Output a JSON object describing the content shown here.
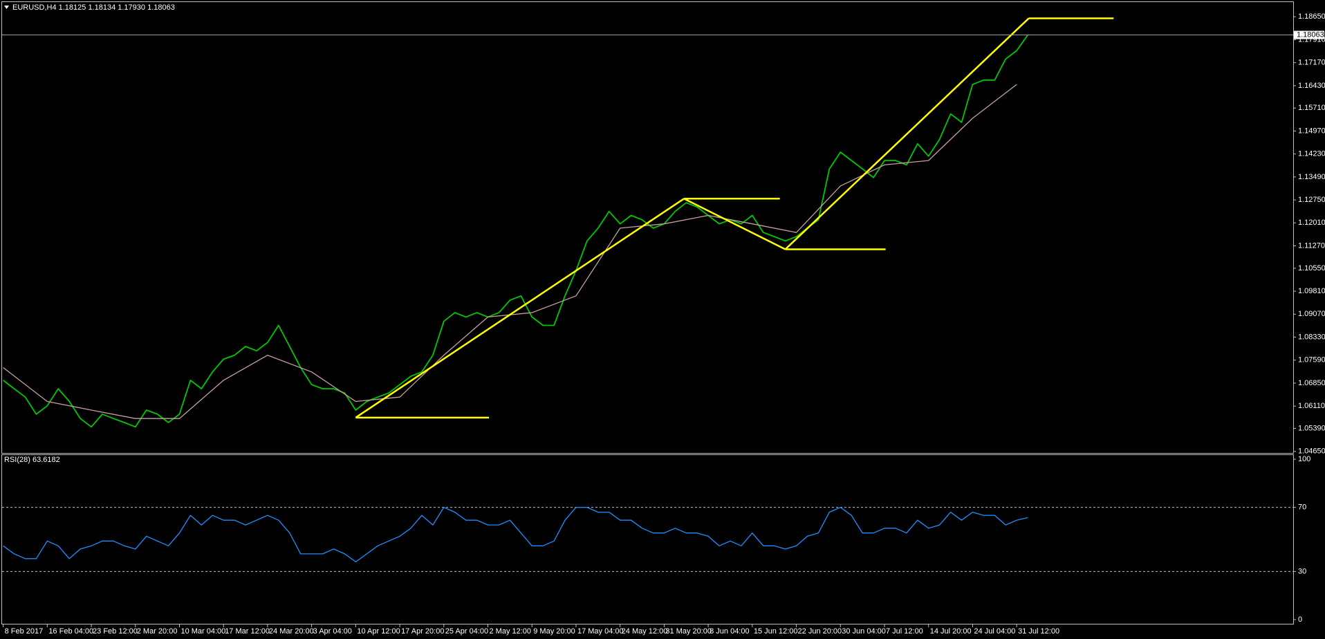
{
  "chart_data": [
    {
      "type": "line",
      "title": "EURUSD,H4  1.18125 1.18134 1.17930 1.18063",
      "xlim": [
        -1,
        1171
      ],
      "ylim": [
        1.046,
        1.191
      ],
      "yticks": [
        {
          "value": 1.1865,
          "label": "1.18650"
        },
        {
          "value": 1.1791,
          "label": "1.17910"
        },
        {
          "value": 1.1717,
          "label": "1.17170"
        },
        {
          "value": 1.1643,
          "label": "1.16430"
        },
        {
          "value": 1.1571,
          "label": "1.15710"
        },
        {
          "value": 1.1497,
          "label": "1.14970"
        },
        {
          "value": 1.1423,
          "label": "1.14230"
        },
        {
          "value": 1.1349,
          "label": "1.13490"
        },
        {
          "value": 1.1275,
          "label": "1.12750"
        },
        {
          "value": 1.1201,
          "label": "1.12010"
        },
        {
          "value": 1.1127,
          "label": "1.11270"
        },
        {
          "value": 1.1055,
          "label": "1.10550"
        },
        {
          "value": 1.0981,
          "label": "1.09810"
        },
        {
          "value": 1.0907,
          "label": "1.09070"
        },
        {
          "value": 1.0833,
          "label": "1.08330"
        },
        {
          "value": 1.0759,
          "label": "1.07590"
        },
        {
          "value": 1.0685,
          "label": "1.06850"
        },
        {
          "value": 1.0611,
          "label": "1.06110"
        },
        {
          "value": 1.0539,
          "label": "1.05390"
        },
        {
          "value": 1.0465,
          "label": "1.04650"
        }
      ],
      "grid": false,
      "series": [
        {
          "color": "#00c800",
          "x": [
            0,
            10,
            20,
            30,
            40,
            50,
            60,
            70,
            80,
            90,
            100,
            110,
            120,
            130,
            140,
            150,
            160,
            170,
            180,
            190,
            200,
            210,
            220,
            230,
            240,
            250,
            260,
            270,
            280,
            290,
            300,
            310,
            320,
            330,
            340,
            350,
            360,
            370,
            380,
            390,
            400,
            410,
            420,
            430,
            440,
            450,
            460,
            470,
            480,
            490,
            500,
            510,
            520,
            530,
            540,
            550,
            560,
            570,
            580,
            590,
            600,
            610,
            620,
            630,
            640,
            650,
            660,
            670,
            680,
            690,
            700,
            710,
            720,
            730,
            740,
            750,
            760,
            770,
            780,
            790,
            800,
            810,
            820,
            830,
            840,
            850,
            860,
            870,
            880,
            890,
            900,
            910,
            920,
            930
          ],
          "values": [
            1.0694,
            1.0667,
            1.064,
            1.0585,
            1.0612,
            1.0667,
            1.0626,
            1.0571,
            1.0544,
            1.0585,
            1.0571,
            1.0558,
            1.0544,
            1.0598,
            1.0585,
            1.0558,
            1.0585,
            1.0694,
            1.0667,
            1.0721,
            1.0762,
            1.0775,
            1.0803,
            1.0789,
            1.0816,
            1.0871,
            1.0803,
            1.0735,
            1.068,
            1.0667,
            1.0667,
            1.0653,
            1.0598,
            1.0626,
            1.064,
            1.0653,
            1.068,
            1.0707,
            1.0721,
            1.0775,
            1.0884,
            1.0912,
            1.0898,
            1.0912,
            1.0898,
            1.0912,
            1.0952,
            1.0966,
            1.0898,
            1.0871,
            1.0871,
            1.0966,
            1.1048,
            1.1143,
            1.1184,
            1.1238,
            1.1198,
            1.1225,
            1.1211,
            1.1184,
            1.1198,
            1.1238,
            1.1266,
            1.1252,
            1.1225,
            1.1198,
            1.1211,
            1.1198,
            1.1225,
            1.117,
            1.1157,
            1.1143,
            1.1157,
            1.1184,
            1.1211,
            1.1375,
            1.1429,
            1.1402,
            1.1375,
            1.1347,
            1.1402,
            1.1402,
            1.1388,
            1.1456,
            1.1416,
            1.147,
            1.1552,
            1.1525,
            1.1647,
            1.1661,
            1.1661,
            1.1729,
            1.1756,
            1.1806
          ]
        },
        {
          "color": "#c8a0a0",
          "x": [
            0,
            40,
            80,
            120,
            160,
            200,
            240,
            280,
            320,
            360,
            400,
            440,
            480,
            520,
            560,
            600,
            640,
            680,
            720,
            760,
            800,
            840,
            880,
            920
          ],
          "values": [
            1.0735,
            1.0626,
            1.0598,
            1.0571,
            1.0571,
            1.0694,
            1.0775,
            1.0721,
            1.0626,
            1.064,
            1.0775,
            1.0898,
            1.0912,
            1.0966,
            1.1184,
            1.1198,
            1.1225,
            1.1198,
            1.117,
            1.132,
            1.1388,
            1.1402,
            1.1538,
            1.1647
          ]
        }
      ],
      "trend_lines": [
        {
          "color": "#ffff00",
          "x": [
            320,
            441
          ],
          "y": [
            1.0574,
            1.0574
          ]
        },
        {
          "color": "#ffff00",
          "x": [
            320,
            618
          ],
          "y": [
            1.0574,
            1.1279
          ]
        },
        {
          "color": "#ffff00",
          "x": [
            618,
            705
          ],
          "y": [
            1.1279,
            1.1279
          ]
        },
        {
          "color": "#ffff00",
          "x": [
            618,
            710
          ],
          "y": [
            1.1279,
            1.1116
          ]
        },
        {
          "color": "#ffff00",
          "x": [
            710,
            801
          ],
          "y": [
            1.1116,
            1.1116
          ]
        },
        {
          "color": "#ffff00",
          "x": [
            710,
            931
          ],
          "y": [
            1.1116,
            1.186
          ]
        },
        {
          "color": "#ffff00",
          "x": [
            931,
            1008
          ],
          "y": [
            1.186,
            1.186
          ]
        }
      ],
      "last_price": {
        "value": 1.18063,
        "label": "1.18063"
      }
    },
    {
      "type": "line",
      "title": "RSI(28) 63.6182",
      "xlim": [
        -1,
        1171
      ],
      "ylim": [
        -2.6,
        102.6
      ],
      "yticks": [
        0,
        30,
        70,
        100
      ],
      "levels": [
        30,
        70
      ],
      "xticks": [
        {
          "value": 0,
          "label": "8 Feb 2017"
        },
        {
          "value": 40,
          "label": "16 Feb 04:00"
        },
        {
          "value": 80,
          "label": "23 Feb 12:00"
        },
        {
          "value": 120,
          "label": "2 Mar 20:00"
        },
        {
          "value": 160,
          "label": "10 Mar 04:00"
        },
        {
          "value": 200,
          "label": "17 Mar 12:00"
        },
        {
          "value": 240,
          "label": "24 Mar 20:00"
        },
        {
          "value": 280,
          "label": "3 Apr 04:00"
        },
        {
          "value": 320,
          "label": "10 Apr 12:00"
        },
        {
          "value": 360,
          "label": "17 Apr 20:00"
        },
        {
          "value": 400,
          "label": "25 Apr 04:00"
        },
        {
          "value": 440,
          "label": "2 May 12:00"
        },
        {
          "value": 480,
          "label": "9 May 20:00"
        },
        {
          "value": 520,
          "label": "17 May 04:00"
        },
        {
          "value": 560,
          "label": "24 May 12:00"
        },
        {
          "value": 600,
          "label": "31 May 20:00"
        },
        {
          "value": 640,
          "label": "8 Jun 04:00"
        },
        {
          "value": 680,
          "label": "15 Jun 12:00"
        },
        {
          "value": 720,
          "label": "22 Jun 20:00"
        },
        {
          "value": 760,
          "label": "30 Jun 04:00"
        },
        {
          "value": 800,
          "label": "7 Jul 12:00"
        },
        {
          "value": 840,
          "label": "14 Jul 20:00"
        },
        {
          "value": 880,
          "label": "24 Jul 04:00"
        },
        {
          "value": 920,
          "label": "31 Jul 12:00"
        }
      ],
      "series": [
        {
          "color": "#1e90ff",
          "x": [
            0,
            10,
            20,
            30,
            40,
            50,
            60,
            70,
            80,
            90,
            100,
            110,
            120,
            130,
            140,
            150,
            160,
            170,
            180,
            190,
            200,
            210,
            220,
            230,
            240,
            250,
            260,
            270,
            280,
            290,
            300,
            310,
            320,
            330,
            340,
            350,
            360,
            370,
            380,
            390,
            400,
            410,
            420,
            430,
            440,
            450,
            460,
            470,
            480,
            490,
            500,
            510,
            520,
            530,
            540,
            550,
            560,
            570,
            580,
            590,
            600,
            610,
            620,
            630,
            640,
            650,
            660,
            670,
            680,
            690,
            700,
            710,
            720,
            730,
            740,
            750,
            760,
            770,
            780,
            790,
            800,
            810,
            820,
            830,
            840,
            850,
            860,
            870,
            880,
            890,
            900,
            910,
            920,
            930
          ],
          "values": [
            46,
            41,
            38,
            38,
            49,
            46,
            38,
            44,
            46,
            49,
            49,
            46,
            44,
            52,
            49,
            46,
            54,
            65,
            59,
            65,
            62,
            62,
            59,
            62,
            65,
            62,
            54,
            41,
            41,
            41,
            44,
            41,
            36,
            41,
            46,
            49,
            52,
            57,
            65,
            59,
            70,
            67,
            62,
            62,
            59,
            59,
            62,
            54,
            46,
            46,
            49,
            62,
            70,
            70,
            67,
            67,
            62,
            62,
            57,
            54,
            54,
            57,
            54,
            54,
            52,
            46,
            49,
            46,
            54,
            46,
            46,
            44,
            46,
            52,
            54,
            67,
            70,
            65,
            54,
            54,
            57,
            57,
            54,
            62,
            57,
            59,
            67,
            62,
            67,
            65,
            65,
            59,
            62,
            63.6
          ]
        }
      ]
    }
  ]
}
